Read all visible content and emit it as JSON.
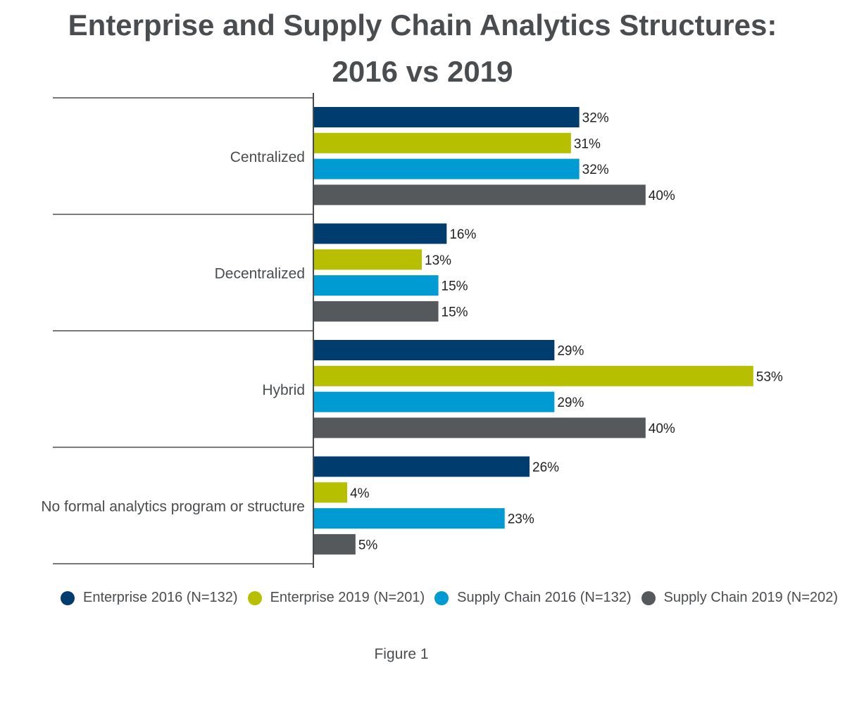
{
  "header": {
    "title_line1": "Enterprise and Supply Chain Analytics Structures:",
    "title_line2": "2016 vs 2019"
  },
  "chart_data": {
    "type": "bar",
    "orientation": "horizontal",
    "title": "Enterprise and Supply Chain Analytics Structures: 2016 vs 2019",
    "categories": [
      "Centralized",
      "Decentralized",
      "Hybrid",
      "No formal analytics program or structure"
    ],
    "series": [
      {
        "name": "Enterprise 2016 (N=132)",
        "color": "#003d6e",
        "values": [
          32,
          16,
          29,
          26
        ]
      },
      {
        "name": "Enterprise 2019 (N=201)",
        "color": "#b7c000",
        "values": [
          31,
          13,
          53,
          4
        ]
      },
      {
        "name": "Supply Chain 2016 (N=132)",
        "color": "#009bd2",
        "values": [
          32,
          15,
          29,
          23
        ]
      },
      {
        "name": "Supply Chain 2019 (N=202)",
        "color": "#55595c",
        "values": [
          40,
          15,
          40,
          5
        ]
      }
    ],
    "value_suffix": "%",
    "xlim": [
      0,
      60
    ],
    "legend_position": "bottom",
    "grid": false
  },
  "footer": {
    "caption": "Figure 1"
  }
}
